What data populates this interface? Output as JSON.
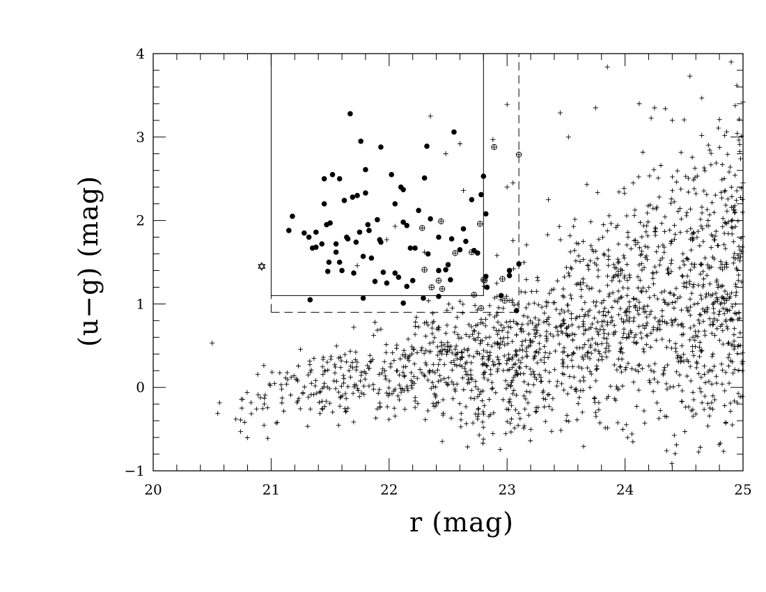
{
  "chart_data": {
    "type": "scatter",
    "xlabel": "r  (mag)",
    "ylabel": "(u−g)  (mag)",
    "xlim": [
      20,
      25
    ],
    "ylim": [
      -1,
      4
    ],
    "x_major_ticks": [
      20,
      21,
      22,
      23,
      24,
      25
    ],
    "y_major_ticks": [
      -1,
      0,
      1,
      2,
      3,
      4
    ],
    "x_tick_labels": [
      "20",
      "21",
      "22",
      "23",
      "24",
      "25"
    ],
    "y_tick_labels": [
      "−1",
      "0",
      "1",
      "2",
      "3",
      "4"
    ],
    "x_minor_step": 0.2,
    "y_minor_step": 0.2,
    "grid": false,
    "selection_boxes": [
      {
        "style": "solid",
        "x": [
          21.0,
          22.8
        ],
        "y": [
          1.1,
          4.0
        ]
      },
      {
        "style": "dashed",
        "x": [
          21.0,
          23.1
        ],
        "y": [
          0.9,
          4.0
        ]
      }
    ],
    "series": [
      {
        "marker": "filled-circle",
        "points": [
          [
            21.15,
            1.88
          ],
          [
            21.18,
            2.05
          ],
          [
            21.28,
            1.85
          ],
          [
            21.32,
            1.8
          ],
          [
            21.35,
            1.67
          ],
          [
            21.38,
            1.68
          ],
          [
            21.38,
            1.86
          ],
          [
            21.43,
            1.72
          ],
          [
            21.45,
            2.5
          ],
          [
            21.45,
            2.2
          ],
          [
            21.47,
            1.95
          ],
          [
            21.48,
            1.39
          ],
          [
            21.49,
            1.5
          ],
          [
            21.5,
            1.97
          ],
          [
            21.52,
            2.55
          ],
          [
            21.55,
            1.72
          ],
          [
            21.55,
            1.62
          ],
          [
            21.58,
            1.5
          ],
          [
            21.58,
            2.5
          ],
          [
            21.6,
            1.4
          ],
          [
            21.62,
            2.24
          ],
          [
            21.64,
            1.8
          ],
          [
            21.65,
            1.78
          ],
          [
            21.67,
            3.28
          ],
          [
            21.69,
            2.28
          ],
          [
            21.7,
            1.37
          ],
          [
            21.72,
            1.74
          ],
          [
            21.73,
            2.3
          ],
          [
            21.75,
            1.86
          ],
          [
            21.76,
            2.95
          ],
          [
            21.78,
            1.57
          ],
          [
            21.8,
            2.33
          ],
          [
            21.8,
            2.61
          ],
          [
            21.82,
            1.95
          ],
          [
            21.83,
            1.88
          ],
          [
            21.85,
            1.55
          ],
          [
            21.88,
            1.27
          ],
          [
            21.9,
            2.01
          ],
          [
            21.92,
            1.77
          ],
          [
            21.93,
            1.74
          ],
          [
            21.93,
            2.88
          ],
          [
            21.95,
            1.38
          ],
          [
            21.98,
            1.25
          ],
          [
            22.02,
            2.55
          ],
          [
            22.05,
            1.37
          ],
          [
            22.05,
            2.2
          ],
          [
            22.08,
            1.32
          ],
          [
            22.1,
            2.4
          ],
          [
            22.12,
            1.98
          ],
          [
            22.12,
            2.37
          ],
          [
            22.15,
            1.21
          ],
          [
            22.15,
            1.94
          ],
          [
            22.18,
            1.67
          ],
          [
            22.2,
            1.28
          ],
          [
            22.22,
            1.67
          ],
          [
            22.25,
            2.12
          ],
          [
            22.3,
            2.51
          ],
          [
            22.32,
            2.89
          ],
          [
            22.33,
            1.6
          ],
          [
            22.35,
            2.02
          ],
          [
            22.42,
            1.8
          ],
          [
            22.42,
            1.4
          ],
          [
            22.48,
            1.41
          ],
          [
            22.5,
            1.47
          ],
          [
            22.52,
            1.29
          ],
          [
            22.53,
            1.78
          ],
          [
            22.55,
            3.06
          ],
          [
            22.6,
            1.65
          ],
          [
            22.63,
            1.9
          ],
          [
            22.65,
            1.75
          ],
          [
            22.7,
            2.25
          ],
          [
            22.72,
            1.64
          ],
          [
            22.75,
            1.61
          ],
          [
            22.78,
            2.31
          ],
          [
            22.8,
            2.53
          ],
          [
            22.82,
            2.08
          ],
          [
            22.82,
            1.33
          ],
          [
            22.83,
            1.2
          ],
          [
            22.12,
            1.01
          ],
          [
            21.33,
            1.05
          ],
          [
            21.78,
            1.07
          ],
          [
            22.29,
            1.07
          ],
          [
            22.42,
            1.09
          ],
          [
            22.95,
            1.1
          ],
          [
            23.02,
            1.4
          ],
          [
            23.02,
            1.34
          ],
          [
            23.08,
            0.92
          ],
          [
            23.1,
            1.48
          ]
        ]
      },
      {
        "marker": "circled-plus",
        "points": [
          [
            22.28,
            1.91
          ],
          [
            22.44,
            1.99
          ],
          [
            22.56,
            1.61
          ],
          [
            22.7,
            1.62
          ],
          [
            22.77,
            1.96
          ],
          [
            22.72,
            1.11
          ],
          [
            22.3,
            1.41
          ],
          [
            22.42,
            1.28
          ],
          [
            22.45,
            1.18
          ],
          [
            22.36,
            1.2
          ],
          [
            22.78,
            0.95
          ],
          [
            22.81,
            1.28
          ],
          [
            22.96,
            1.3
          ],
          [
            22.98,
            1.04
          ],
          [
            22.89,
            2.88
          ],
          [
            23.1,
            2.79
          ],
          [
            22.8,
            1.29
          ]
        ]
      },
      {
        "marker": "star",
        "points": [
          [
            20.92,
            1.45
          ]
        ]
      },
      {
        "marker": "plus",
        "points": [
          [
            20.5,
            0.53
          ],
          [
            22.35,
            3.25
          ],
          [
            22.48,
            2.8
          ],
          [
            22.88,
            2.97
          ],
          [
            23.0,
            3.39
          ],
          [
            23.0,
            2.4
          ],
          [
            23.05,
            2.45
          ],
          [
            22.6,
            2.92
          ],
          [
            22.05,
            1.93
          ],
          [
            22.3,
            1.62
          ],
          [
            21.98,
            1.77
          ],
          [
            22.63,
            2.36
          ],
          [
            21.73,
            1.46
          ],
          [
            21.88,
            0.78
          ],
          [
            21.7,
            0.72
          ],
          [
            22.3,
            0.77
          ],
          [
            23.05,
            1.76
          ],
          [
            23.35,
            2.25
          ],
          [
            23.45,
            3.29
          ],
          [
            23.52,
            3.0
          ],
          [
            23.75,
            3.35
          ],
          [
            23.85,
            3.84
          ],
          [
            24.12,
            3.4
          ],
          [
            24.25,
            3.35
          ],
          [
            24.4,
            3.2
          ],
          [
            24.55,
            3.73
          ],
          [
            24.8,
            3.21
          ],
          [
            24.9,
            3.9
          ],
          [
            25.0,
            3.42
          ],
          [
            24.5,
            1.25
          ],
          [
            24.65,
            3.02
          ],
          [
            25.0,
            2.45
          ],
          [
            24.85,
            1.97
          ]
        ]
      }
    ],
    "background_cloud": {
      "marker": "plus",
      "description_free": true,
      "count": 1750,
      "range_x": [
        20.5,
        25.0
      ],
      "trend_points": [
        [
          20.5,
          -0.3
        ],
        [
          21.0,
          -0.15
        ],
        [
          21.5,
          0.05
        ],
        [
          22.0,
          0.15
        ],
        [
          22.5,
          0.25
        ],
        [
          23.0,
          0.35
        ],
        [
          23.5,
          0.6
        ],
        [
          24.0,
          0.95
        ],
        [
          24.5,
          1.2
        ],
        [
          25.0,
          1.3
        ]
      ]
    }
  }
}
